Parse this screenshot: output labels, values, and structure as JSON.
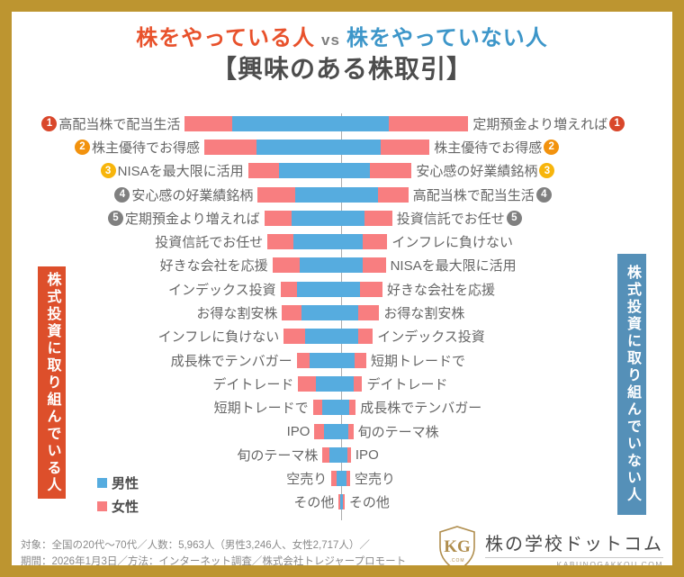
{
  "frame": {
    "border_color": "#BD9530",
    "background": "#FFFFFF"
  },
  "title": {
    "line1_left": "株をやっている人",
    "line1_vs": "vs",
    "line1_right": "株をやっていない人",
    "line2": "【興味のある株取引】",
    "color_left": "#E8512B",
    "color_vs": "#7F7F7F",
    "color_right": "#3D96C9",
    "color_line2": "#4D4D4D"
  },
  "legend": {
    "items": [
      {
        "label": "男性",
        "color": "#56ACDF"
      },
      {
        "label": "女性",
        "color": "#F87E80"
      }
    ]
  },
  "side_banners": {
    "left": {
      "text": "株式投資に取り組んでいる人",
      "bg": "#DD4F2B"
    },
    "right": {
      "text": "株式投資に取り組んでいない人",
      "bg": "#5590B8"
    }
  },
  "footer": {
    "line1": "対象：全国の20代～70代／人数：5,963人（男性3,246人、女性2,717人）／",
    "line2": "期間：2026年1月3日／方法：インターネット調査／株式会社トレジャープロモート"
  },
  "logo": {
    "monogram": "KG",
    "name": "株の学校ドットコム",
    "domain": "KABUNOGAKKOU.COM"
  },
  "rank_badge_colors": {
    "1": "#D9472B",
    "2": "#F2920E",
    "3": "#F7B50C",
    "4": "#808080",
    "5": "#808080"
  },
  "chart_data": {
    "type": "bar",
    "subtype": "diverging butterfly chart, bars stacked by gender, no numeric data labels shown",
    "value_units": "estimated % of half-axis width (read from bar pixel lengths)",
    "axis": {
      "center_split": true,
      "gridlines": false,
      "ticks": false
    },
    "series_names": [
      "男性",
      "女性"
    ],
    "colors": {
      "male": "#56ACDF",
      "female": "#F87E80"
    },
    "left_group": {
      "title": "株式投資に取り組んでいる人",
      "direction": "bars extend left from center; order from center: 男性 then 女性",
      "rows": [
        {
          "label": "高配当株で配当生活",
          "rank": 1,
          "male": 68,
          "female": 29
        },
        {
          "label": "株主優待でお得感",
          "rank": 2,
          "male": 53,
          "female": 32
        },
        {
          "label": "NISAを最大限に活用",
          "rank": 3,
          "male": 39,
          "female": 19
        },
        {
          "label": "安心感の好業績銘柄",
          "rank": 4,
          "male": 29,
          "female": 23
        },
        {
          "label": "定期預金より増えれば",
          "rank": 5,
          "male": 31,
          "female": 17
        },
        {
          "label": "投資信託でお任せ",
          "rank": 0,
          "male": 30,
          "female": 16
        },
        {
          "label": "好きな会社を応援",
          "rank": 0,
          "male": 26,
          "female": 17
        },
        {
          "label": "インデックス投資",
          "rank": 0,
          "male": 28,
          "female": 10
        },
        {
          "label": "お得な割安株",
          "rank": 0,
          "male": 25,
          "female": 12
        },
        {
          "label": "インフレに負けない",
          "rank": 0,
          "male": 23,
          "female": 13
        },
        {
          "label": "成長株でテンバガー",
          "rank": 0,
          "male": 20,
          "female": 8
        },
        {
          "label": "デイトレード",
          "rank": 0,
          "male": 16,
          "female": 11
        },
        {
          "label": "短期トレードで",
          "rank": 0,
          "male": 12,
          "female": 6
        },
        {
          "label": "IPO",
          "rank": 0,
          "male": 11,
          "female": 6
        },
        {
          "label": "旬のテーマ株",
          "rank": 0,
          "male": 8,
          "female": 4
        },
        {
          "label": "空売り",
          "rank": 0,
          "male": 3.5,
          "female": 3
        },
        {
          "label": "その他",
          "rank": 0,
          "male": 1,
          "female": 1
        }
      ]
    },
    "right_group": {
      "title": "株式投資に取り組んでいない人",
      "direction": "bars extend right from center; order from center: 男性 then 女性",
      "rows": [
        {
          "label": "定期預金より増えれば",
          "rank": 1,
          "male": 29,
          "female": 49
        },
        {
          "label": "株主優待でお得感",
          "rank": 2,
          "male": 24,
          "female": 30
        },
        {
          "label": "安心感の好業績銘柄",
          "rank": 3,
          "male": 17,
          "female": 26
        },
        {
          "label": "高配当株で配当生活",
          "rank": 4,
          "male": 22,
          "female": 19
        },
        {
          "label": "投資信託でお任せ",
          "rank": 5,
          "male": 14,
          "female": 17
        },
        {
          "label": "インフレに負けない",
          "rank": 0,
          "male": 13,
          "female": 15
        },
        {
          "label": "NISAを最大限に活用",
          "rank": 0,
          "male": 13,
          "female": 14
        },
        {
          "label": "好きな会社を応援",
          "rank": 0,
          "male": 11,
          "female": 14
        },
        {
          "label": "お得な割安株",
          "rank": 0,
          "male": 10,
          "female": 13
        },
        {
          "label": "インデックス投資",
          "rank": 0,
          "male": 10,
          "female": 9
        },
        {
          "label": "短期トレードで",
          "rank": 0,
          "male": 8,
          "female": 7
        },
        {
          "label": "デイトレード",
          "rank": 0,
          "male": 7,
          "female": 5.5
        },
        {
          "label": "成長株でテンバガー",
          "rank": 0,
          "male": 4.5,
          "female": 4
        },
        {
          "label": "旬のテーマ株",
          "rank": 0,
          "male": 4,
          "female": 3
        },
        {
          "label": "IPO",
          "rank": 0,
          "male": 3.5,
          "female": 2
        },
        {
          "label": "空売り",
          "rank": 0,
          "male": 3,
          "female": 2
        },
        {
          "label": "その他",
          "rank": 0,
          "male": 0.8,
          "female": 0.8
        }
      ]
    }
  }
}
